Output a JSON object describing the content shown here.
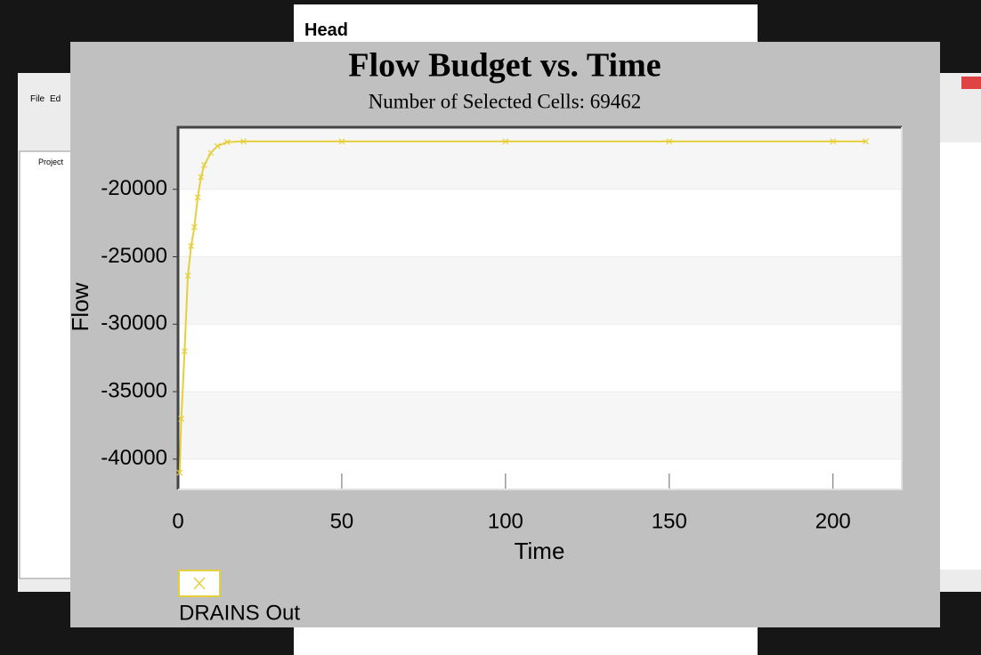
{
  "ui": {
    "window_title": "Head",
    "menu": [
      "File",
      "Ed"
    ],
    "tree_root": "Project"
  },
  "chart_data": {
    "type": "line",
    "title": "Flow Budget vs. Time",
    "subtitle": "Number of Selected Cells: 69462",
    "x_label": "Time",
    "y_label": "Flow",
    "x": [
      0.5,
      1,
      2,
      3,
      4,
      5,
      6,
      7,
      8,
      10,
      12,
      15,
      20,
      50,
      100,
      150,
      200,
      210
    ],
    "series": [
      {
        "name": "DRAINS Out",
        "color": "#e6cf3c",
        "values": [
          -41000,
          -37000,
          -32000,
          -26400,
          -24200,
          -22800,
          -20600,
          -19100,
          -18200,
          -17300,
          -16800,
          -16500,
          -16450,
          -16450,
          -16450,
          -16450,
          -16450,
          -16450
        ]
      }
    ],
    "xlim": [
      0,
      221
    ],
    "xticks": [
      0,
      50,
      100,
      150,
      200
    ],
    "ylim": [
      -42250,
      -15400
    ],
    "yticks": [
      -40000,
      -35000,
      -30000,
      -25000,
      -20000
    ],
    "grid": true,
    "legend": "below"
  }
}
